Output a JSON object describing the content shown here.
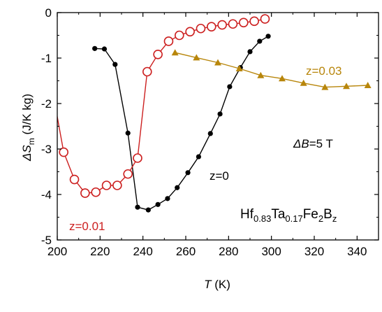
{
  "chart_data": {
    "type": "scatter",
    "xlabel": {
      "symbol": "T",
      "unit": " (K)"
    },
    "ylabel": {
      "delta": "ΔS",
      "sub": "m",
      "unit": " (J/K kg)"
    },
    "xlim": [
      200,
      350
    ],
    "ylim": [
      -5,
      0
    ],
    "xticks": [
      "200",
      "220",
      "240",
      "260",
      "280",
      "300",
      "320",
      "340"
    ],
    "yticks": [
      "0",
      "-1",
      "-2",
      "-3",
      "-4",
      "-5"
    ],
    "grid": false,
    "series": [
      {
        "name": "z=0",
        "color": "#000000",
        "marker": "filled-circle",
        "points": [
          [
            217.5,
            -0.79
          ],
          [
            222,
            -0.8
          ],
          [
            227,
            -1.14
          ],
          [
            233,
            -2.65
          ],
          [
            237.5,
            -4.28
          ],
          [
            242.5,
            -4.34
          ],
          [
            247,
            -4.22
          ],
          [
            251.5,
            -4.09
          ],
          [
            256,
            -3.85
          ],
          [
            261,
            -3.52
          ],
          [
            266,
            -3.17
          ],
          [
            271.5,
            -2.66
          ],
          [
            276,
            -2.23
          ],
          [
            280.5,
            -1.63
          ],
          [
            285.5,
            -1.21
          ],
          [
            290,
            -0.86
          ],
          [
            294.5,
            -0.63
          ],
          [
            298.5,
            -0.52
          ]
        ]
      },
      {
        "name": "z=0.01",
        "color": "#cc1f1f",
        "marker": "open-circle",
        "points": [
          [
            196,
            -1.25
          ],
          [
            203,
            -3.07
          ],
          [
            208,
            -3.67
          ],
          [
            213,
            -3.97
          ],
          [
            218,
            -3.95
          ],
          [
            223,
            -3.8
          ],
          [
            228,
            -3.8
          ],
          [
            233,
            -3.55
          ],
          [
            237.5,
            -3.2
          ],
          [
            242,
            -1.3
          ],
          [
            247,
            -0.92
          ],
          [
            252,
            -0.63
          ],
          [
            257,
            -0.5
          ],
          [
            262,
            -0.42
          ],
          [
            267,
            -0.35
          ],
          [
            272,
            -0.31
          ],
          [
            277,
            -0.27
          ],
          [
            282,
            -0.25
          ],
          [
            287,
            -0.22
          ],
          [
            292,
            -0.19
          ],
          [
            297,
            -0.14
          ]
        ]
      },
      {
        "name": "z=0.03",
        "color": "#b8860b",
        "marker": "filled-triangle",
        "points": [
          [
            255,
            -0.88
          ],
          [
            265,
            -0.99
          ],
          [
            275,
            -1.1
          ],
          [
            285,
            -1.23
          ],
          [
            295,
            -1.38
          ],
          [
            305,
            -1.45
          ],
          [
            315,
            -1.55
          ],
          [
            325,
            -1.64
          ],
          [
            335,
            -1.62
          ],
          [
            345,
            -1.6
          ]
        ]
      }
    ],
    "annotations": {
      "z0": "z=0",
      "z001": "z=0.01",
      "z003": "z=0.03",
      "field": {
        "delta": "ΔB",
        "rest": "=5 T"
      },
      "composition": [
        {
          "text": "Hf",
          "sub": false
        },
        {
          "text": "0.83",
          "sub": true
        },
        {
          "text": "Ta",
          "sub": false
        },
        {
          "text": "0.17",
          "sub": true
        },
        {
          "text": "Fe",
          "sub": false
        },
        {
          "text": "2",
          "sub": true
        },
        {
          "text": "B",
          "sub": false
        },
        {
          "text": "z",
          "sub": true
        }
      ]
    }
  }
}
